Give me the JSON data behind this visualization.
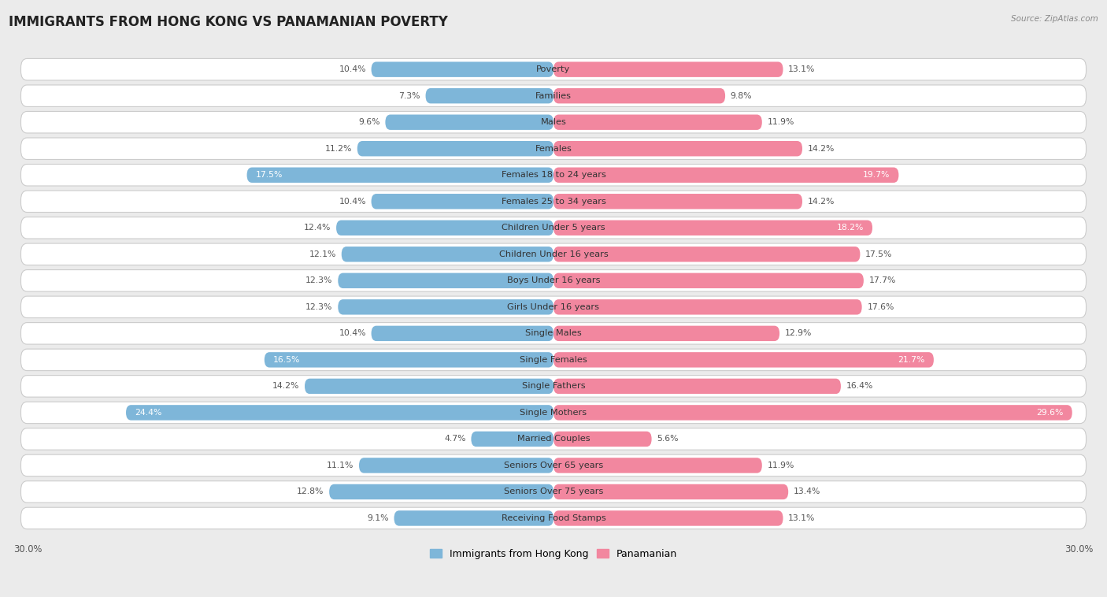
{
  "title": "IMMIGRANTS FROM HONG KONG VS PANAMANIAN POVERTY",
  "source": "Source: ZipAtlas.com",
  "categories": [
    "Poverty",
    "Families",
    "Males",
    "Females",
    "Females 18 to 24 years",
    "Females 25 to 34 years",
    "Children Under 5 years",
    "Children Under 16 years",
    "Boys Under 16 years",
    "Girls Under 16 years",
    "Single Males",
    "Single Females",
    "Single Fathers",
    "Single Mothers",
    "Married Couples",
    "Seniors Over 65 years",
    "Seniors Over 75 years",
    "Receiving Food Stamps"
  ],
  "hk_values": [
    10.4,
    7.3,
    9.6,
    11.2,
    17.5,
    10.4,
    12.4,
    12.1,
    12.3,
    12.3,
    10.4,
    16.5,
    14.2,
    24.4,
    4.7,
    11.1,
    12.8,
    9.1
  ],
  "pan_values": [
    13.1,
    9.8,
    11.9,
    14.2,
    19.7,
    14.2,
    18.2,
    17.5,
    17.7,
    17.6,
    12.9,
    21.7,
    16.4,
    29.6,
    5.6,
    11.9,
    13.4,
    13.1
  ],
  "hk_color": "#7EB6D9",
  "pan_color": "#F2879F",
  "bg_color": "#EBEBEB",
  "row_color": "#FFFFFF",
  "max_val": 30.0,
  "bar_height": 0.58,
  "title_fontsize": 12,
  "label_fontsize": 8.2,
  "value_fontsize": 7.8,
  "legend_fontsize": 9,
  "legend_label_hk": "Immigrants from Hong Kong",
  "legend_label_pan": "Panamanian"
}
